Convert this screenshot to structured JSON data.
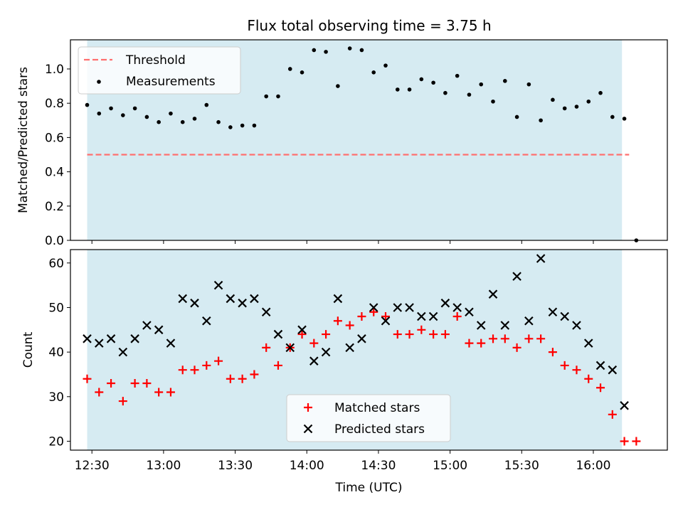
{
  "chart_data": [
    {
      "type": "scatter",
      "title": "Flux total observing time = 3.75 h",
      "xlabel": "",
      "ylabel": "Matched/Predicted stars",
      "ylim": [
        0,
        1.17
      ],
      "yticks": [
        "0.0",
        "0.2",
        "0.4",
        "0.6",
        "0.8",
        "1.0"
      ],
      "yticks_values": [
        0,
        0.2,
        0.4,
        0.6,
        0.8,
        1.0
      ],
      "shaded_region": {
        "start": "12:28",
        "end": "16:12",
        "color": "#add8e6"
      },
      "legend": {
        "location": "upper-left",
        "entries": [
          "Threshold",
          "Measurements"
        ]
      },
      "series": [
        {
          "name": "Threshold",
          "kind": "dashed-line",
          "color": "#ff6f6f",
          "x": [
            "12:28",
            "16:15"
          ],
          "y": [
            0.5,
            0.5
          ]
        },
        {
          "name": "Measurements",
          "kind": "points",
          "color": "#000000",
          "x": [
            "12:28",
            "12:33",
            "12:38",
            "12:43",
            "12:48",
            "12:53",
            "12:58",
            "13:03",
            "13:08",
            "13:13",
            "13:18",
            "13:23",
            "13:28",
            "13:33",
            "13:38",
            "13:43",
            "13:48",
            "13:53",
            "13:58",
            "14:03",
            "14:08",
            "14:13",
            "14:18",
            "14:23",
            "14:28",
            "14:33",
            "14:38",
            "14:43",
            "14:48",
            "14:53",
            "14:58",
            "15:03",
            "15:08",
            "15:13",
            "15:18",
            "15:23",
            "15:28",
            "15:33",
            "15:38",
            "15:43",
            "15:48",
            "15:53",
            "15:58",
            "16:03",
            "16:08",
            "16:13",
            "16:18"
          ],
          "y": [
            0.79,
            0.74,
            0.77,
            0.73,
            0.77,
            0.72,
            0.69,
            0.74,
            0.69,
            0.71,
            0.79,
            0.69,
            0.66,
            0.67,
            0.67,
            0.84,
            0.84,
            1.0,
            0.98,
            1.11,
            1.1,
            0.9,
            1.12,
            1.11,
            0.98,
            1.02,
            0.88,
            0.88,
            0.94,
            0.92,
            0.86,
            0.96,
            0.85,
            0.91,
            0.81,
            0.93,
            0.72,
            0.91,
            0.7,
            0.82,
            0.77,
            0.78,
            0.81,
            0.86,
            0.72,
            0.71,
            0.0
          ]
        }
      ]
    },
    {
      "type": "scatter",
      "title": "",
      "xlabel": "Time (UTC)",
      "ylabel": "Count",
      "ylim": [
        18,
        63
      ],
      "yticks": [
        "20",
        "30",
        "40",
        "50",
        "60"
      ],
      "yticks_values": [
        20,
        30,
        40,
        50,
        60
      ],
      "xticks": [
        "12:30",
        "13:00",
        "13:30",
        "14:00",
        "14:30",
        "15:00",
        "15:30",
        "16:00"
      ],
      "xticks_values": [
        "12:30",
        "13:00",
        "13:30",
        "14:00",
        "14:30",
        "15:00",
        "15:30",
        "16:00"
      ],
      "xlim": [
        "12:21",
        "16:31"
      ],
      "shaded_region": {
        "start": "12:28",
        "end": "16:12",
        "color": "#add8e6"
      },
      "legend": {
        "location": "lower-center",
        "entries": [
          "Matched stars",
          "Predicted stars"
        ]
      },
      "series": [
        {
          "name": "Matched stars",
          "marker": "plus",
          "color": "#ff0000",
          "x": [
            "12:28",
            "12:33",
            "12:38",
            "12:43",
            "12:48",
            "12:53",
            "12:58",
            "13:03",
            "13:08",
            "13:13",
            "13:18",
            "13:23",
            "13:28",
            "13:33",
            "13:38",
            "13:43",
            "13:48",
            "13:53",
            "13:58",
            "14:03",
            "14:08",
            "14:13",
            "14:18",
            "14:23",
            "14:28",
            "14:33",
            "14:38",
            "14:43",
            "14:48",
            "14:53",
            "14:58",
            "15:03",
            "15:08",
            "15:13",
            "15:18",
            "15:23",
            "15:28",
            "15:33",
            "15:38",
            "15:43",
            "15:48",
            "15:53",
            "15:58",
            "16:03",
            "16:08",
            "16:13",
            "16:18"
          ],
          "y": [
            34,
            31,
            33,
            29,
            33,
            33,
            31,
            31,
            36,
            36,
            37,
            38,
            34,
            34,
            35,
            41,
            37,
            41,
            44,
            42,
            44,
            47,
            46,
            48,
            49,
            48,
            44,
            44,
            45,
            44,
            44,
            48,
            42,
            42,
            43,
            43,
            41,
            43,
            43,
            40,
            37,
            36,
            34,
            32,
            26,
            20,
            20
          ]
        },
        {
          "name": "Predicted stars",
          "marker": "x",
          "color": "#000000",
          "x": [
            "12:28",
            "12:33",
            "12:38",
            "12:43",
            "12:48",
            "12:53",
            "12:58",
            "13:03",
            "13:08",
            "13:13",
            "13:18",
            "13:23",
            "13:28",
            "13:33",
            "13:38",
            "13:43",
            "13:48",
            "13:53",
            "13:58",
            "14:03",
            "14:08",
            "14:13",
            "14:18",
            "14:23",
            "14:28",
            "14:33",
            "14:38",
            "14:43",
            "14:48",
            "14:53",
            "14:58",
            "15:03",
            "15:08",
            "15:13",
            "15:18",
            "15:23",
            "15:28",
            "15:33",
            "15:38",
            "15:43",
            "15:48",
            "15:53",
            "15:58",
            "16:03",
            "16:08",
            "16:13"
          ],
          "y": [
            43,
            42,
            43,
            40,
            43,
            46,
            45,
            42,
            52,
            51,
            47,
            55,
            52,
            51,
            52,
            49,
            44,
            41,
            45,
            38,
            40,
            52,
            41,
            43,
            50,
            47,
            50,
            50,
            48,
            48,
            51,
            50,
            49,
            46,
            53,
            46,
            57,
            47,
            61,
            49,
            48,
            46,
            42,
            37,
            36,
            28
          ]
        }
      ]
    }
  ]
}
